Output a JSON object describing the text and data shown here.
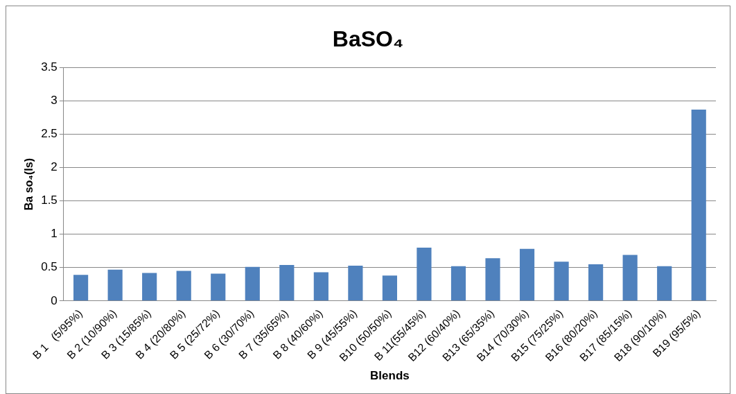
{
  "chart_data": {
    "type": "bar",
    "title": "BaSO₄",
    "xlabel": "Blends",
    "ylabel": "Ba so₄(Is)",
    "categories": [
      "B 1   (5/95%)",
      "B 2 (10/90%)",
      "B 3 (15/85%)",
      "B 4 (20/80%)",
      "B 5 (25/72%)",
      "B 6 (30/70%)",
      "B 7 (35/65%)",
      "B 8 (40/60%)",
      "B 9 (45/55%)",
      "B10 (50/50%)",
      "B 11(55/45%)",
      "B12 (60/40%)",
      "B13 (65/35%)",
      "B14 (70/30%)",
      "B15 (75/25%)",
      "B16 (80/20%)",
      "B17 (85/15%)",
      "B18 (90/10%)",
      "B19 (95/5%)"
    ],
    "values": [
      0.39,
      0.47,
      0.42,
      0.45,
      0.41,
      0.51,
      0.54,
      0.43,
      0.53,
      0.38,
      0.8,
      0.52,
      0.64,
      0.78,
      0.59,
      0.55,
      0.69,
      0.52,
      2.87
    ],
    "color": "#4f81bd",
    "ylim": [
      0,
      3.5
    ],
    "yticks": [
      0,
      0.5,
      1,
      1.5,
      2,
      2.5,
      3,
      3.5
    ],
    "grid": "y",
    "legend": false
  }
}
